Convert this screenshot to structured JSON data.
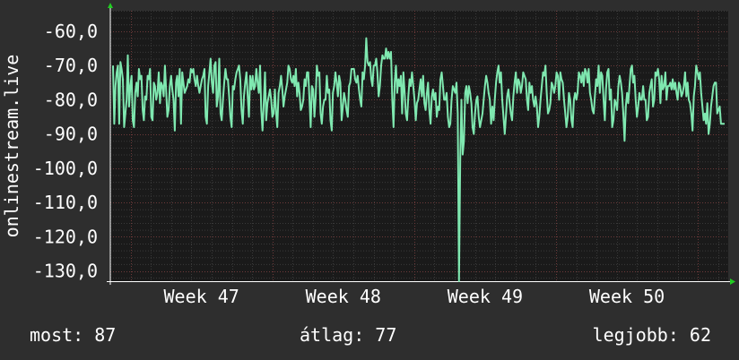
{
  "chart_data": {
    "type": "line",
    "ylabel": "onlinestream.live",
    "ylim": [
      -133,
      -54
    ],
    "y_ticks": [
      "-60,0",
      "-70,0",
      "-80,0",
      "-90,0",
      "-100,0",
      "-110,0",
      "-120,0",
      "-130,0"
    ],
    "y_tick_values": [
      -60,
      -70,
      -80,
      -90,
      -100,
      -110,
      -120,
      -130
    ],
    "x_ticks": [
      "Week 47",
      "Week 48",
      "Week 49",
      "Week 50"
    ],
    "x_tick_positions": [
      4.5,
      11.5,
      18.5,
      25.5
    ],
    "xlim": [
      0,
      30.5
    ],
    "grid": true,
    "line_color": "#7fe8b0",
    "series": [
      {
        "values": [
          -70,
          -87,
          -76,
          -72,
          -70,
          -87,
          -69,
          -71,
          -74,
          -88,
          -84,
          -80,
          -67,
          -82,
          -76,
          -73,
          -86,
          -88,
          -78,
          -75,
          -79,
          -71,
          -74,
          -73,
          -83,
          -86,
          -79,
          -80,
          -73,
          -74,
          -71,
          -85,
          -86,
          -75,
          -76,
          -80,
          -78,
          -72,
          -81,
          -75,
          -76,
          -79,
          -70,
          -77,
          -85,
          -83,
          -76,
          -73,
          -77,
          -80,
          -89,
          -75,
          -73,
          -79,
          -71,
          -87,
          -72,
          -75,
          -78,
          -77,
          -76,
          -74,
          -75,
          -71,
          -72,
          -71,
          -74,
          -76,
          -73,
          -76,
          -78,
          -76,
          -74,
          -73,
          -71,
          -85,
          -87,
          -76,
          -72,
          -68,
          -75,
          -78,
          -70,
          -69,
          -82,
          -79,
          -68,
          -84,
          -86,
          -80,
          -75,
          -71,
          -74,
          -74,
          -79,
          -85,
          -88,
          -76,
          -77,
          -74,
          -72,
          -71,
          -70,
          -74,
          -83,
          -87,
          -79,
          -75,
          -72,
          -79,
          -85,
          -73,
          -77,
          -73,
          -77,
          -76,
          -71,
          -75,
          -78,
          -70,
          -83,
          -89,
          -81,
          -72,
          -86,
          -81,
          -79,
          -77,
          -80,
          -85,
          -84,
          -77,
          -84,
          -88,
          -78,
          -76,
          -73,
          -77,
          -82,
          -79,
          -77,
          -75,
          -70,
          -71,
          -74,
          -75,
          -73,
          -76,
          -71,
          -79,
          -75,
          -78,
          -83,
          -82,
          -80,
          -74,
          -76,
          -72,
          -72,
          -80,
          -88,
          -76,
          -77,
          -85,
          -79,
          -70,
          -73,
          -72,
          -84,
          -87,
          -82,
          -80,
          -80,
          -73,
          -78,
          -77,
          -86,
          -89,
          -78,
          -76,
          -72,
          -75,
          -79,
          -73,
          -75,
          -86,
          -82,
          -78,
          -80,
          -83,
          -85,
          -76,
          -75,
          -71,
          -71,
          -71,
          -74,
          -75,
          -73,
          -77,
          -80,
          -82,
          -72,
          -74,
          -70,
          -62,
          -69,
          -70,
          -69,
          -74,
          -76,
          -70,
          -70,
          -68,
          -72,
          -79,
          -76,
          -70,
          -67,
          -68,
          -68,
          -65,
          -68,
          -66,
          -68,
          -66,
          -80,
          -88,
          -75,
          -70,
          -78,
          -74,
          -76,
          -73,
          -84,
          -72,
          -78,
          -84,
          -86,
          -79,
          -74,
          -76,
          -72,
          -76,
          -80,
          -86,
          -81,
          -80,
          -77,
          -74,
          -79,
          -73,
          -81,
          -83,
          -78,
          -75,
          -83,
          -87,
          -79,
          -77,
          -80,
          -78,
          -85,
          -82,
          -83,
          -74,
          -72,
          -76,
          -80,
          -80,
          -78,
          -85,
          -88,
          -87,
          -80,
          -76,
          -77,
          -78,
          -75,
          -84,
          -133,
          -97,
          -80,
          -96,
          -92,
          -78,
          -76,
          -81,
          -76,
          -78,
          -81,
          -88,
          -90,
          -84,
          -80,
          -79,
          -85,
          -88,
          -86,
          -84,
          -80,
          -76,
          -73,
          -75,
          -78,
          -80,
          -87,
          -82,
          -86,
          -80,
          -75,
          -72,
          -70,
          -75,
          -72,
          -80,
          -85,
          -90,
          -85,
          -79,
          -77,
          -81,
          -84,
          -86,
          -79,
          -75,
          -72,
          -78,
          -74,
          -75,
          -78,
          -76,
          -72,
          -73,
          -74,
          -80,
          -83,
          -75,
          -78,
          -76,
          -80,
          -82,
          -79,
          -82,
          -88,
          -85,
          -80,
          -76,
          -72,
          -73,
          -70,
          -78,
          -84,
          -83,
          -81,
          -75,
          -76,
          -78,
          -76,
          -72,
          -73,
          -80,
          -72,
          -74,
          -75,
          -80,
          -84,
          -88,
          -85,
          -78,
          -80,
          -86,
          -88,
          -80,
          -78,
          -80,
          -78,
          -72,
          -73,
          -75,
          -72,
          -76,
          -71,
          -72,
          -75,
          -71,
          -78,
          -80,
          -83,
          -84,
          -79,
          -74,
          -76,
          -70,
          -78,
          -72,
          -73,
          -80,
          -86,
          -77,
          -72,
          -71,
          -80,
          -77,
          -88,
          -86,
          -80,
          -81,
          -83,
          -76,
          -73,
          -75,
          -78,
          -84,
          -92,
          -82,
          -78,
          -81,
          -76,
          -71,
          -70,
          -75,
          -73,
          -80,
          -85,
          -82,
          -78,
          -80,
          -80,
          -76,
          -80,
          -80,
          -86,
          -85,
          -78,
          -76,
          -74,
          -82,
          -80,
          -72,
          -73,
          -71,
          -74,
          -81,
          -73,
          -77,
          -76,
          -72,
          -80,
          -76,
          -76,
          -75,
          -77,
          -74,
          -77,
          -75,
          -78,
          -80,
          -75,
          -76,
          -79,
          -78,
          -76,
          -72,
          -79,
          -75,
          -80,
          -81,
          -84,
          -89,
          -79,
          -76,
          -70,
          -72,
          -74,
          -72,
          -78,
          -82,
          -86,
          -84,
          -87,
          -81,
          -90,
          -87,
          -82,
          -79,
          -76,
          -75,
          -75,
          -84,
          -83,
          -82,
          -87,
          -87,
          -87,
          -87
        ]
      }
    ]
  },
  "stats": {
    "most": "most: 87",
    "avg": "átlag: 77",
    "best": "legjobb: 62"
  }
}
